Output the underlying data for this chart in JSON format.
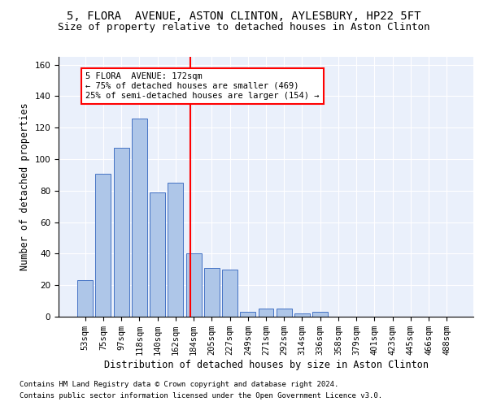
{
  "title_line1": "5, FLORA  AVENUE, ASTON CLINTON, AYLESBURY, HP22 5FT",
  "title_line2": "Size of property relative to detached houses in Aston Clinton",
  "xlabel": "Distribution of detached houses by size in Aston Clinton",
  "ylabel": "Number of detached properties",
  "footnote1": "Contains HM Land Registry data © Crown copyright and database right 2024.",
  "footnote2": "Contains public sector information licensed under the Open Government Licence v3.0.",
  "bar_labels": [
    "53sqm",
    "75sqm",
    "97sqm",
    "118sqm",
    "140sqm",
    "162sqm",
    "184sqm",
    "205sqm",
    "227sqm",
    "249sqm",
    "271sqm",
    "292sqm",
    "314sqm",
    "336sqm",
    "358sqm",
    "379sqm",
    "401sqm",
    "423sqm",
    "445sqm",
    "466sqm",
    "488sqm"
  ],
  "bar_values": [
    23,
    91,
    107,
    126,
    79,
    85,
    40,
    31,
    30,
    3,
    5,
    5,
    2,
    3,
    0,
    0,
    0,
    0,
    0,
    0,
    0
  ],
  "bar_color": "#aec6e8",
  "bar_edgecolor": "#4472c4",
  "vline_x_index": 5.82,
  "vline_color": "red",
  "annotation_text": "5 FLORA  AVENUE: 172sqm\n← 75% of detached houses are smaller (469)\n25% of semi-detached houses are larger (154) →",
  "annotation_box_color": "white",
  "annotation_box_edgecolor": "red",
  "ylim": [
    0,
    165
  ],
  "background_color": "#eaf0fb",
  "grid_color": "white",
  "title_fontsize": 10,
  "subtitle_fontsize": 9,
  "footnote_fontsize": 6.5,
  "ylabel_fontsize": 8.5,
  "xlabel_fontsize": 8.5,
  "tick_fontsize": 7.5,
  "annot_fontsize": 7.5
}
